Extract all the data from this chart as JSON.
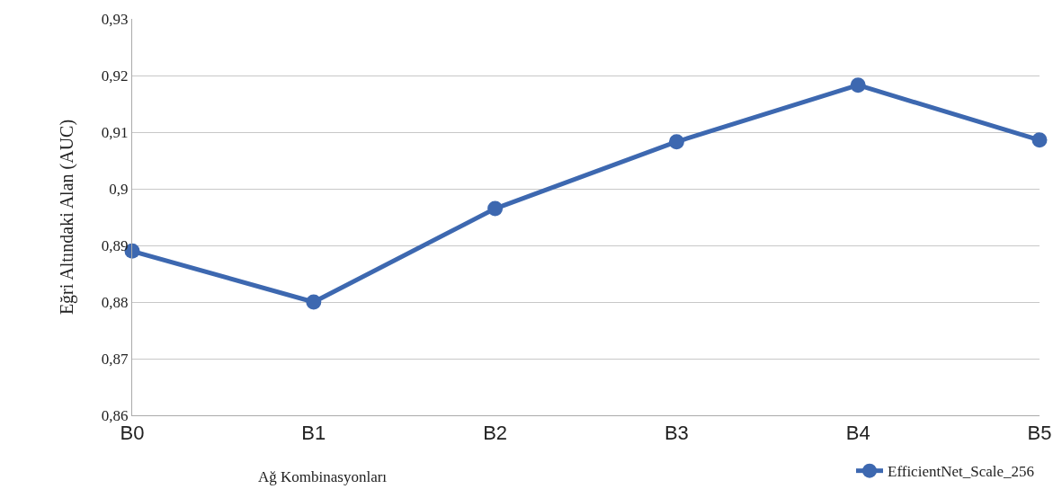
{
  "chart_data": {
    "type": "line",
    "xlabel": "Ağ Kombinasyonları",
    "ylabel": "Eğri Altındaki Alan (AUC)",
    "categories": [
      "B0",
      "B1",
      "B2",
      "B3",
      "B4",
      "B5"
    ],
    "series": [
      {
        "name": "EfficientNet_Scale_256",
        "color": "#3d68b0",
        "values": [
          0.889,
          0.88,
          0.8965,
          0.9083,
          0.9183,
          0.9086
        ]
      }
    ],
    "ylim": [
      0.86,
      0.93
    ],
    "yticks": [
      {
        "value": 0.86,
        "label": "0,86"
      },
      {
        "value": 0.87,
        "label": "0,87"
      },
      {
        "value": 0.88,
        "label": "0,88"
      },
      {
        "value": 0.89,
        "label": "0,89"
      },
      {
        "value": 0.9,
        "label": "0,9"
      },
      {
        "value": 0.91,
        "label": "0,91"
      },
      {
        "value": 0.92,
        "label": "0,92"
      },
      {
        "value": 0.93,
        "label": "0,93"
      }
    ],
    "grid": "y",
    "legend": "bottom right",
    "marker": "circle",
    "line_style": "solid"
  }
}
